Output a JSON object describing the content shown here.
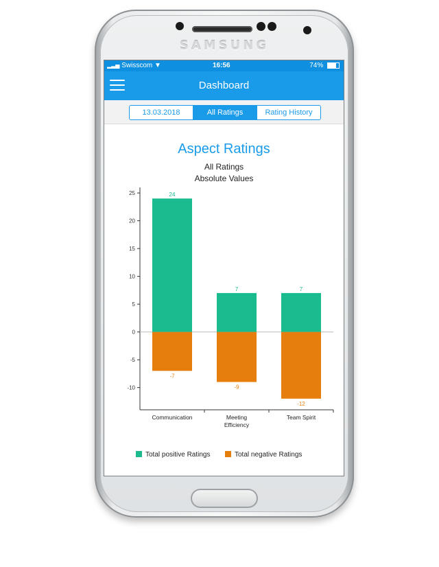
{
  "device": {
    "brand": "SAMSUNG"
  },
  "statusbar": {
    "carrier": "Swisscom",
    "time": "16:56",
    "battery": "74%"
  },
  "navbar": {
    "title": "Dashboard",
    "menu_icon": "hamburger-menu-icon"
  },
  "tabs": [
    {
      "label": "13.03.2018",
      "active": false
    },
    {
      "label": "All Ratings",
      "active": true
    },
    {
      "label": "Rating History",
      "active": false
    }
  ],
  "colors": {
    "accent": "#1a9bea",
    "positive": "#1abc8f",
    "negative": "#e67e0e"
  },
  "chart_data": {
    "type": "bar",
    "title": "Aspect Ratings",
    "subtitle_1": "All Ratings",
    "subtitle_2": "Absolute Values",
    "categories": [
      "Communication",
      "Meeting Efficiency",
      "Team Spirit"
    ],
    "category_lines": [
      [
        "Communication"
      ],
      [
        "Meeting",
        "Efficiency"
      ],
      [
        "Team Spirit"
      ]
    ],
    "series": [
      {
        "name": "Total positive Ratings",
        "values": [
          24,
          7,
          7
        ]
      },
      {
        "name": "Total negative Ratings",
        "values": [
          -7,
          -9,
          -12
        ]
      }
    ],
    "ylim": [
      -14,
      26
    ],
    "yticks": [
      25,
      20,
      15,
      10,
      5,
      0,
      -5,
      -10
    ],
    "legend_position": "bottom"
  }
}
